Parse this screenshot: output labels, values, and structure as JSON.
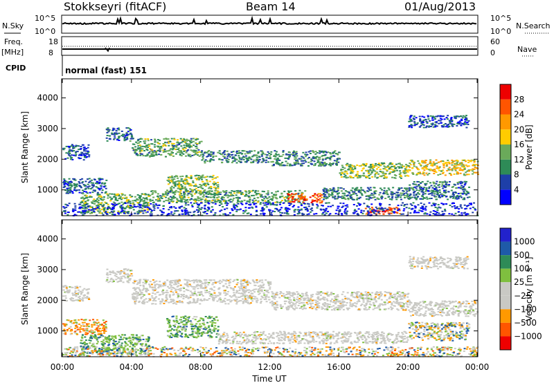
{
  "header": {
    "station": "Stokkseyri (fitACF)",
    "beam": "Beam 14",
    "date": "01/Aug/2013"
  },
  "noise_panel": {
    "left_label": "N.Sky",
    "left_ticks": [
      "10^5",
      "10^0"
    ],
    "right_ticks": [
      "10^5",
      "10^0"
    ],
    "right_label": "N.Search"
  },
  "freq_panel": {
    "label_line1": "Freq.",
    "label_line2": "[MHz]",
    "left_ticks": [
      "18",
      "8"
    ],
    "right_ticks": [
      "60",
      "0"
    ],
    "right_label": "Nave"
  },
  "cpid_panel": {
    "label": "CPID",
    "text": "normal (fast) 151"
  },
  "colors": {
    "power_scale": [
      "#0000ff",
      "#1e3fa8",
      "#2e8b57",
      "#6aaa5a",
      "#ffcc00",
      "#ff9900",
      "#ff5500",
      "#ee0000"
    ],
    "velocity_scale": [
      "#ee0000",
      "#ff5500",
      "#ff9900",
      "#c9c9c4",
      "#c9c9c4",
      "#7fbf3f",
      "#2e8b57",
      "#1e5aa8",
      "#2222cc"
    ],
    "ground_scatter": "#c9c9c4"
  },
  "chart_data": [
    {
      "type": "heatmap",
      "name": "power",
      "ylabel": "Slant Range [km]",
      "ylim": [
        180,
        4600
      ],
      "yticks": [
        "1000",
        "2000",
        "3000",
        "4000"
      ],
      "colorbar_label": "Power [dB]",
      "colorbar_ticks": [
        "4",
        "8",
        "12",
        "16",
        "20",
        "24",
        "28"
      ],
      "colorbar_range": [
        0,
        32
      ],
      "xlim": [
        0,
        24
      ],
      "features": [
        {
          "t_start": 0.0,
          "t_end": 1.5,
          "r_low": 2000,
          "r_high": 2500,
          "level": 6
        },
        {
          "t_start": 2.5,
          "t_end": 4.0,
          "r_low": 2600,
          "r_high": 3050,
          "level": 8
        },
        {
          "t_start": 4.0,
          "t_end": 8.0,
          "r_low": 2100,
          "r_high": 2700,
          "level": 12
        },
        {
          "t_start": 8.0,
          "t_end": 12.0,
          "r_low": 1900,
          "r_high": 2300,
          "level": 10
        },
        {
          "t_start": 12.0,
          "t_end": 16.0,
          "r_low": 1800,
          "r_high": 2300,
          "level": 10
        },
        {
          "t_start": 16.0,
          "t_end": 20.0,
          "r_low": 1400,
          "r_high": 1900,
          "level": 14
        },
        {
          "t_start": 20.0,
          "t_end": 24.0,
          "r_low": 1500,
          "r_high": 2000,
          "level": 18
        },
        {
          "t_start": 20.0,
          "t_end": 23.5,
          "r_low": 3050,
          "r_high": 3450,
          "level": 6
        },
        {
          "t_start": 0.0,
          "t_end": 2.5,
          "r_low": 900,
          "r_high": 1400,
          "level": 7
        },
        {
          "t_start": 1.0,
          "t_end": 5.0,
          "r_low": 250,
          "r_high": 900,
          "level": 13
        },
        {
          "t_start": 6.0,
          "t_end": 9.0,
          "r_low": 900,
          "r_high": 1500,
          "level": 14
        },
        {
          "t_start": 5.0,
          "t_end": 14.0,
          "r_low": 600,
          "r_high": 1000,
          "level": 12
        },
        {
          "t_start": 13.0,
          "t_end": 15.0,
          "r_low": 600,
          "r_high": 900,
          "level": 26
        },
        {
          "t_start": 15.0,
          "t_end": 20.0,
          "r_low": 700,
          "r_high": 1100,
          "level": 9
        },
        {
          "t_start": 20.0,
          "t_end": 23.5,
          "r_low": 700,
          "r_high": 1300,
          "level": 8
        },
        {
          "t_start": 17.5,
          "t_end": 19.5,
          "r_low": 200,
          "r_high": 450,
          "level": 28
        },
        {
          "t_start": 0.0,
          "t_end": 24.0,
          "r_low": 180,
          "r_high": 600,
          "level": 5
        }
      ]
    },
    {
      "type": "heatmap",
      "name": "velocity",
      "ylabel": "Slant Range [km]",
      "ylim": [
        180,
        4600
      ],
      "yticks": [
        "1000",
        "2000",
        "3000",
        "4000"
      ],
      "xlabel": "Time UT",
      "xticks": [
        "00:00",
        "04:00",
        "08:00",
        "12:00",
        "16:00",
        "20:00",
        "00:00"
      ],
      "xlim": [
        0,
        24
      ],
      "colorbar_label": "Velocity [m s⁻¹]",
      "colorbar_ticks": [
        "1000",
        "500",
        "100",
        "25",
        "−25",
        "−100",
        "−500",
        "−1000"
      ],
      "features": [
        {
          "t_start": 0.0,
          "t_end": 1.5,
          "r_low": 2000,
          "r_high": 2500,
          "kind": "ground"
        },
        {
          "t_start": 2.5,
          "t_end": 4.0,
          "r_low": 2600,
          "r_high": 3050,
          "kind": "ground"
        },
        {
          "t_start": 4.0,
          "t_end": 12.0,
          "r_low": 1900,
          "r_high": 2700,
          "kind": "ground"
        },
        {
          "t_start": 12.0,
          "t_end": 20.0,
          "r_low": 1700,
          "r_high": 2300,
          "kind": "ground"
        },
        {
          "t_start": 20.0,
          "t_end": 24.0,
          "r_low": 1500,
          "r_high": 2000,
          "kind": "ground"
        },
        {
          "t_start": 20.0,
          "t_end": 23.5,
          "r_low": 3050,
          "r_high": 3450,
          "kind": "ground"
        },
        {
          "t_start": 0.0,
          "t_end": 2.5,
          "r_low": 900,
          "r_high": 1400,
          "kind": "negative"
        },
        {
          "t_start": 1.0,
          "t_end": 5.0,
          "r_low": 250,
          "r_high": 900,
          "kind": "positive"
        },
        {
          "t_start": 6.0,
          "t_end": 9.0,
          "r_low": 800,
          "r_high": 1500,
          "kind": "positive"
        },
        {
          "t_start": 9.0,
          "t_end": 20.0,
          "r_low": 600,
          "r_high": 1000,
          "kind": "ground"
        },
        {
          "t_start": 20.0,
          "t_end": 23.5,
          "r_low": 700,
          "r_high": 1300,
          "kind": "mixed"
        },
        {
          "t_start": 0.0,
          "t_end": 24.0,
          "r_low": 180,
          "r_high": 500,
          "kind": "mixed_low"
        }
      ]
    }
  ]
}
